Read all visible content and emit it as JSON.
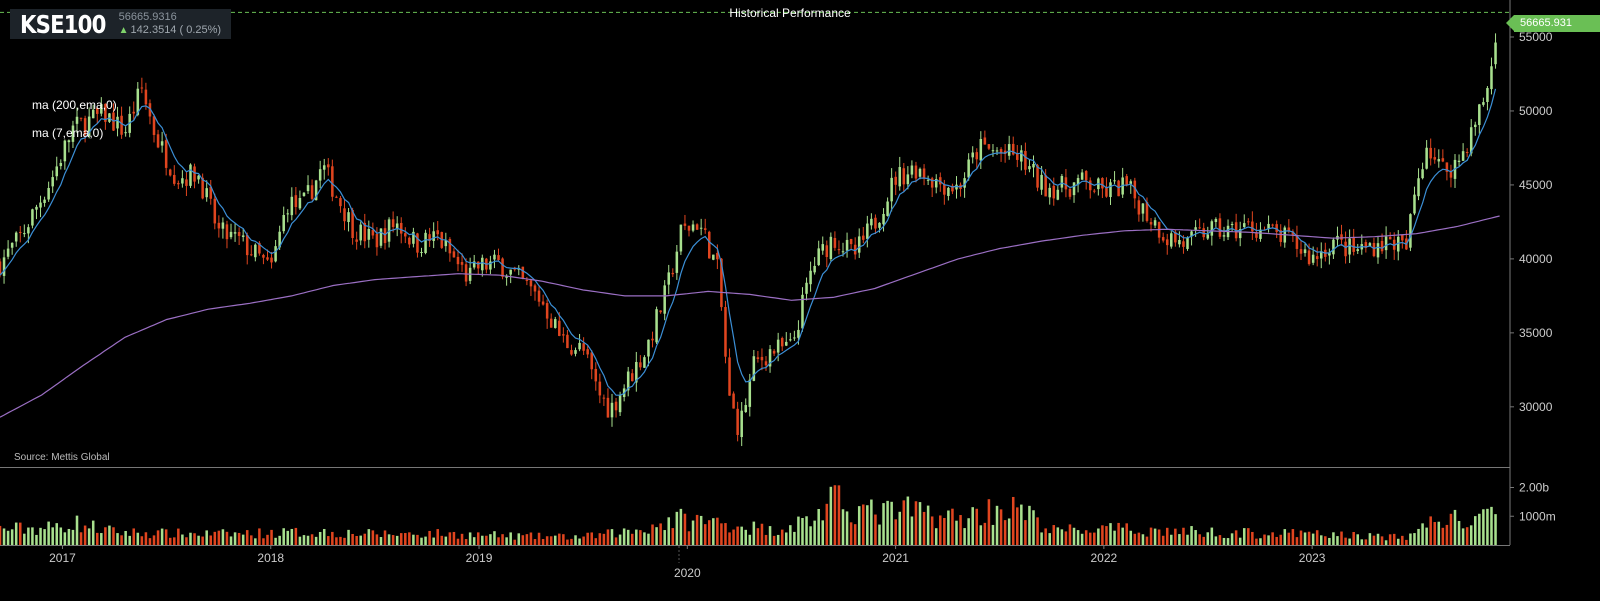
{
  "header": {
    "ticker": "KSE100",
    "price": "56665.9316",
    "change": "142.3514 ( 0.25%)",
    "title": "Historical Performance"
  },
  "indicators": [
    "ma (200,ema,0)",
    "ma (7,ema,0)"
  ],
  "source": "Source: Mettis Global",
  "last_price_label": "56665.931",
  "colors": {
    "up": "#a8e08e",
    "down": "#e0451f",
    "ema7": "#3b8fd6",
    "ema200": "#9b6fc4",
    "bg": "#000000",
    "last_price": "#6abf55"
  },
  "chart_data": {
    "type": "candlestick",
    "title": "Historical Performance",
    "x_ticks": [
      "2017",
      "2018",
      "2019",
      "2020",
      "2021",
      "2022",
      "2023"
    ],
    "price_axis": {
      "ticks": [
        "30000",
        "35000",
        "40000",
        "45000",
        "50000",
        "55000"
      ],
      "range": [
        26000,
        57500
      ]
    },
    "volume_axis": {
      "ticks": [
        "1000m",
        "2.00b"
      ],
      "range": [
        0,
        2400000000
      ]
    },
    "x_range": [
      2016.7,
      2023.95
    ],
    "weekly_close_anchors": [
      [
        2016.7,
        39700
      ],
      [
        2016.8,
        41500
      ],
      [
        2016.95,
        45500
      ],
      [
        2017.05,
        48800
      ],
      [
        2017.2,
        49800
      ],
      [
        2017.3,
        48600
      ],
      [
        2017.38,
        51500
      ],
      [
        2017.45,
        48200
      ],
      [
        2017.55,
        45500
      ],
      [
        2017.65,
        45800
      ],
      [
        2017.75,
        41800
      ],
      [
        2017.85,
        41200
      ],
      [
        2017.95,
        40000
      ],
      [
        2018.0,
        39200
      ],
      [
        2018.08,
        43800
      ],
      [
        2018.15,
        43500
      ],
      [
        2018.25,
        46200
      ],
      [
        2018.32,
        44200
      ],
      [
        2018.4,
        42000
      ],
      [
        2018.5,
        41200
      ],
      [
        2018.6,
        42500
      ],
      [
        2018.7,
        41000
      ],
      [
        2018.8,
        41500
      ],
      [
        2018.85,
        40500
      ],
      [
        2018.95,
        38700
      ],
      [
        2019.0,
        39500
      ],
      [
        2019.1,
        39700
      ],
      [
        2019.2,
        38500
      ],
      [
        2019.3,
        37200
      ],
      [
        2019.4,
        34500
      ],
      [
        2019.5,
        33800
      ],
      [
        2019.57,
        31000
      ],
      [
        2019.63,
        29800
      ],
      [
        2019.7,
        31500
      ],
      [
        2019.8,
        33800
      ],
      [
        2019.9,
        37800
      ],
      [
        2019.97,
        41800
      ],
      [
        2020.05,
        42500
      ],
      [
        2020.1,
        41000
      ],
      [
        2020.15,
        39000
      ],
      [
        2020.2,
        30500
      ],
      [
        2020.25,
        28500
      ],
      [
        2020.32,
        32800
      ],
      [
        2020.4,
        33800
      ],
      [
        2020.5,
        34000
      ],
      [
        2020.6,
        39500
      ],
      [
        2020.7,
        41500
      ],
      [
        2020.8,
        40200
      ],
      [
        2020.9,
        42500
      ],
      [
        2021.0,
        45500
      ],
      [
        2021.1,
        46200
      ],
      [
        2021.2,
        45200
      ],
      [
        2021.3,
        44800
      ],
      [
        2021.4,
        47500
      ],
      [
        2021.5,
        47200
      ],
      [
        2021.6,
        46800
      ],
      [
        2021.7,
        45000
      ],
      [
        2021.8,
        44800
      ],
      [
        2021.9,
        45200
      ],
      [
        2022.0,
        44500
      ],
      [
        2022.1,
        45000
      ],
      [
        2022.2,
        43200
      ],
      [
        2022.3,
        41500
      ],
      [
        2022.4,
        41000
      ],
      [
        2022.5,
        42000
      ],
      [
        2022.6,
        41800
      ],
      [
        2022.7,
        42200
      ],
      [
        2022.8,
        41800
      ],
      [
        2022.9,
        41200
      ],
      [
        2023.0,
        40000
      ],
      [
        2023.1,
        41200
      ],
      [
        2023.2,
        40500
      ],
      [
        2023.3,
        41000
      ],
      [
        2023.4,
        41200
      ],
      [
        2023.45,
        40500
      ],
      [
        2023.5,
        45000
      ],
      [
        2023.55,
        47800
      ],
      [
        2023.62,
        46000
      ],
      [
        2023.7,
        46500
      ],
      [
        2023.78,
        49000
      ],
      [
        2023.84,
        51500
      ],
      [
        2023.88,
        54500
      ],
      [
        2023.9,
        56666
      ]
    ],
    "ema200_anchors": [
      [
        2016.7,
        29300
      ],
      [
        2016.9,
        30800
      ],
      [
        2017.1,
        32800
      ],
      [
        2017.3,
        34700
      ],
      [
        2017.5,
        35900
      ],
      [
        2017.7,
        36600
      ],
      [
        2017.9,
        37000
      ],
      [
        2018.1,
        37500
      ],
      [
        2018.3,
        38200
      ],
      [
        2018.5,
        38600
      ],
      [
        2018.7,
        38800
      ],
      [
        2018.9,
        39000
      ],
      [
        2019.1,
        38900
      ],
      [
        2019.3,
        38500
      ],
      [
        2019.5,
        37900
      ],
      [
        2019.7,
        37500
      ],
      [
        2019.9,
        37500
      ],
      [
        2020.1,
        37800
      ],
      [
        2020.3,
        37600
      ],
      [
        2020.5,
        37200
      ],
      [
        2020.7,
        37400
      ],
      [
        2020.9,
        38000
      ],
      [
        2021.1,
        39000
      ],
      [
        2021.3,
        40000
      ],
      [
        2021.5,
        40700
      ],
      [
        2021.7,
        41200
      ],
      [
        2021.9,
        41600
      ],
      [
        2022.1,
        41900
      ],
      [
        2022.3,
        42000
      ],
      [
        2022.5,
        41900
      ],
      [
        2022.7,
        41800
      ],
      [
        2022.9,
        41600
      ],
      [
        2023.1,
        41400
      ],
      [
        2023.3,
        41500
      ],
      [
        2023.5,
        41700
      ],
      [
        2023.7,
        42200
      ],
      [
        2023.9,
        42900
      ]
    ],
    "volume_anchors": [
      [
        2016.7,
        550
      ],
      [
        2016.95,
        600
      ],
      [
        2017.05,
        780
      ],
      [
        2017.25,
        450
      ],
      [
        2017.5,
        400
      ],
      [
        2017.75,
        380
      ],
      [
        2018.0,
        420
      ],
      [
        2018.25,
        450
      ],
      [
        2018.5,
        380
      ],
      [
        2018.75,
        400
      ],
      [
        2019.0,
        350
      ],
      [
        2019.25,
        300
      ],
      [
        2019.5,
        280
      ],
      [
        2019.75,
        500
      ],
      [
        2019.95,
        900
      ],
      [
        2020.2,
        750
      ],
      [
        2020.4,
        500
      ],
      [
        2020.6,
        900
      ],
      [
        2020.7,
        1500
      ],
      [
        2020.9,
        1100
      ],
      [
        2021.1,
        1200
      ],
      [
        2021.3,
        900
      ],
      [
        2021.5,
        1300
      ],
      [
        2021.6,
        1200
      ],
      [
        2021.75,
        500
      ],
      [
        2022.0,
        550
      ],
      [
        2022.25,
        500
      ],
      [
        2022.5,
        450
      ],
      [
        2022.75,
        400
      ],
      [
        2023.0,
        380
      ],
      [
        2023.25,
        320
      ],
      [
        2023.45,
        250
      ],
      [
        2023.6,
        950
      ],
      [
        2023.75,
        800
      ],
      [
        2023.9,
        1000
      ]
    ]
  }
}
